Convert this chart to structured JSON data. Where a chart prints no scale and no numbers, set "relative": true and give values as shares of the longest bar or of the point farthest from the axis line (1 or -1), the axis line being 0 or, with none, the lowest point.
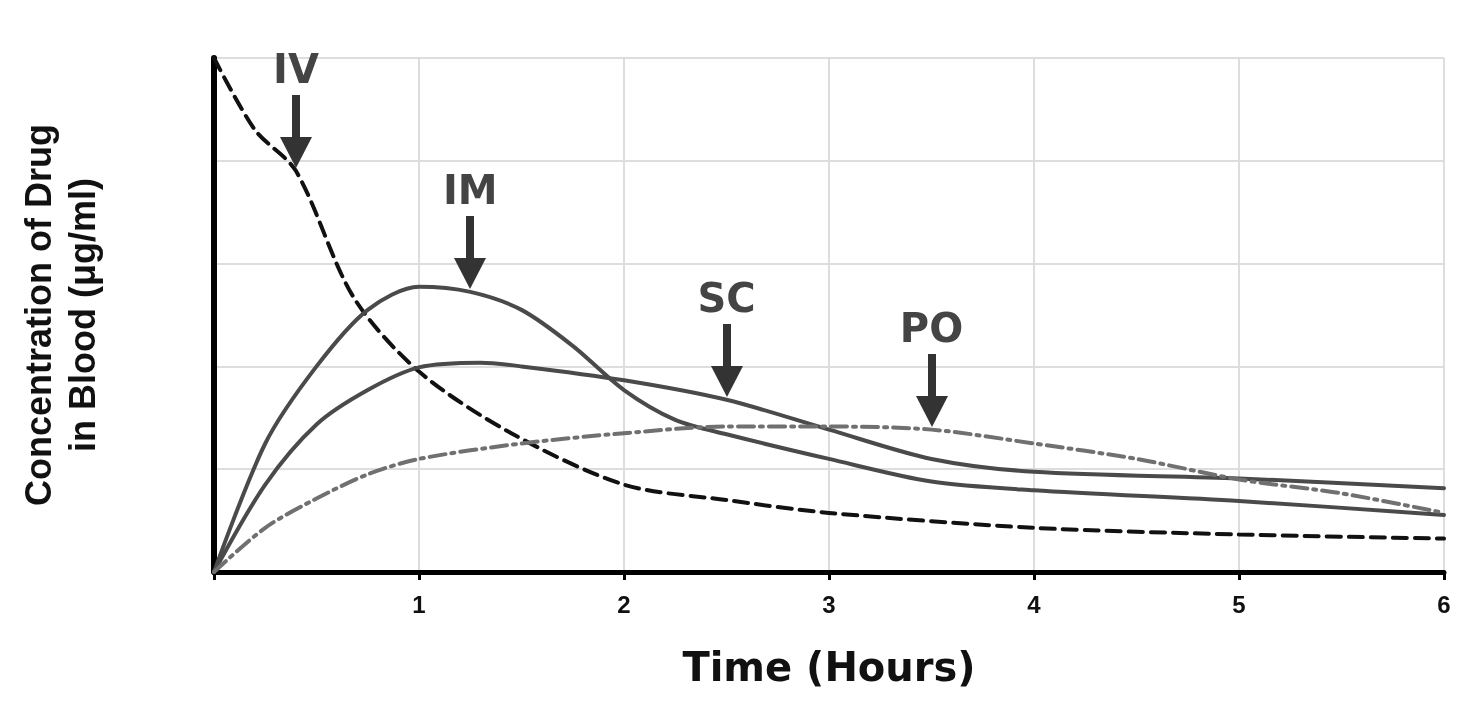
{
  "chart_data": {
    "type": "line",
    "xlabel": "Time (Hours)",
    "ylabel": "Concentration of Drug\nin Blood (μg/ml)",
    "relative": true,
    "xlim": [
      0,
      6
    ],
    "xticks": [
      {
        "value": 0,
        "label": null
      },
      1,
      2,
      3,
      4,
      5,
      6
    ],
    "grid": true,
    "marker": "none",
    "series": [
      {
        "color": "#111111",
        "line_style": "dashed",
        "x": [
          0,
          0.2,
          0.4,
          0.68,
          1,
          1.45,
          2,
          2.5,
          3,
          4,
          5,
          6
        ],
        "values": [
          1.0,
          0.86,
          0.78,
          0.535,
          0.39,
          0.27,
          0.17,
          0.14,
          0.115,
          0.086,
          0.073,
          0.065
        ]
      },
      {
        "color": "#4a4a4a",
        "line_style": "solid",
        "x": [
          0,
          0.25,
          0.5,
          0.75,
          1,
          1.25,
          1.5,
          1.75,
          2,
          2.25,
          2.5,
          3,
          3.5,
          4,
          5,
          6
        ],
        "values": [
          0,
          0.25,
          0.4,
          0.51,
          0.555,
          0.545,
          0.51,
          0.44,
          0.354,
          0.296,
          0.268,
          0.22,
          0.176,
          0.159,
          0.138,
          0.111
        ]
      },
      {
        "color": "#4a4a4a",
        "line_style": "solid",
        "x": [
          0,
          0.25,
          0.5,
          0.75,
          1,
          1.3,
          1.5,
          2,
          2.5,
          3,
          3.5,
          4,
          5,
          6
        ],
        "values": [
          0,
          0.17,
          0.287,
          0.354,
          0.398,
          0.407,
          0.4,
          0.373,
          0.335,
          0.277,
          0.22,
          0.195,
          0.182,
          0.163
        ]
      },
      {
        "color": "#707070",
        "line_style": "dashdot",
        "x": [
          0,
          0.25,
          0.5,
          0.75,
          1,
          1.5,
          2,
          2.5,
          3,
          3.5,
          4,
          4.5,
          5,
          5.5,
          6
        ],
        "values": [
          0,
          0.086,
          0.143,
          0.19,
          0.22,
          0.25,
          0.27,
          0.283,
          0.283,
          0.277,
          0.25,
          0.22,
          0.18,
          0.153,
          0.115
        ]
      }
    ],
    "annotations": [
      {
        "text": "IV",
        "x": 0.4,
        "y": 0.78
      },
      {
        "text": "IM",
        "x": 1.25,
        "y": 0.545
      },
      {
        "text": "SC",
        "x": 2.5,
        "y": 0.335
      },
      {
        "text": "PO",
        "x": 3.5,
        "y": 0.277
      }
    ]
  }
}
